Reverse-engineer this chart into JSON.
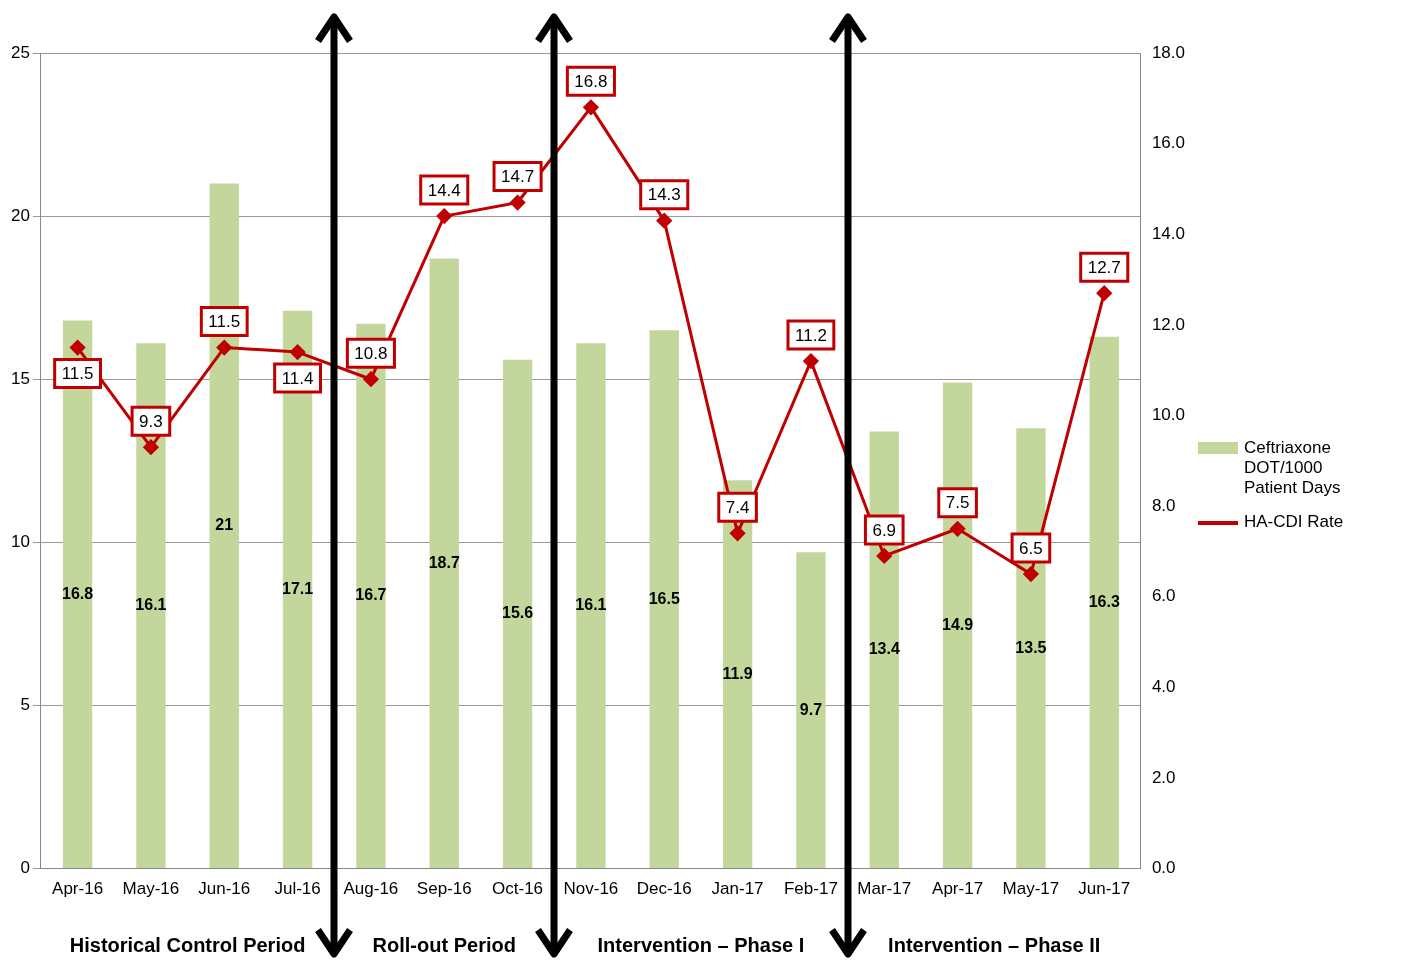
{
  "chart_data": {
    "type": "bar",
    "categories": [
      "Apr-16",
      "May-16",
      "Jun-16",
      "Jul-16",
      "Aug-16",
      "Sep-16",
      "Oct-16",
      "Nov-16",
      "Dec-16",
      "Jan-17",
      "Feb-17",
      "Mar-17",
      "Apr-17",
      "May-17",
      "Jun-17"
    ],
    "series": [
      {
        "name": "Ceftriaxone DOT/1000 Patient Days",
        "color": "#c3d69b",
        "values": [
          16.8,
          16.1,
          21,
          17.1,
          16.7,
          18.7,
          15.6,
          16.1,
          16.5,
          11.9,
          9.7,
          13.4,
          14.9,
          13.5,
          16.3
        ]
      },
      {
        "name": "HA-CDI Rate",
        "type": "line",
        "axis": "y2",
        "color": "#c00000",
        "values": [
          11.5,
          9.3,
          11.5,
          11.4,
          10.8,
          14.4,
          14.7,
          16.8,
          14.3,
          7.4,
          11.2,
          6.9,
          7.5,
          6.5,
          12.7
        ]
      }
    ],
    "ylim": [
      0,
      25
    ],
    "yticks": [
      0,
      5,
      10,
      15,
      20,
      25
    ],
    "y2lim": [
      0,
      18
    ],
    "y2ticks": [
      {
        "value": 0,
        "label": "0.0"
      },
      {
        "value": 2,
        "label": "2.0"
      },
      {
        "value": 4,
        "label": "4.0"
      },
      {
        "value": 6,
        "label": "6.0"
      },
      {
        "value": 8,
        "label": "8.0"
      },
      {
        "value": 10,
        "label": "10.0"
      },
      {
        "value": 12,
        "label": "12.0"
      },
      {
        "value": 14,
        "label": "14.0"
      },
      {
        "value": 16,
        "label": "16.0"
      },
      {
        "value": 18,
        "label": "18.0"
      }
    ],
    "annotations": [
      "Historical Control Period",
      "Roll-out Period",
      "Intervention – Phase I",
      "Intervention – Phase II"
    ],
    "data_labels": true,
    "grid": "y",
    "legend": "right",
    "marker": "diamond",
    "line_style": "solid"
  }
}
